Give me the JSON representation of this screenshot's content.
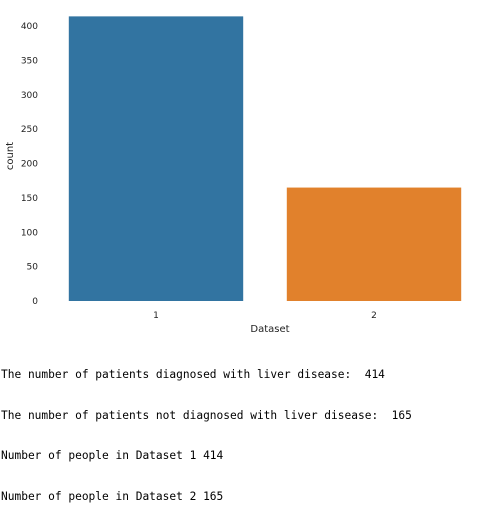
{
  "colors": {
    "series": [
      "#3274a1",
      "#e1812c"
    ],
    "text": "#222222",
    "background": "#ffffff"
  },
  "chart_data": {
    "type": "bar",
    "title": "",
    "xlabel": "Dataset",
    "ylabel": "count",
    "categories": [
      "1",
      "2"
    ],
    "values": [
      414,
      165
    ],
    "ylim": [
      0,
      416
    ],
    "yticks": [
      0,
      50,
      100,
      150,
      200,
      250,
      300,
      350,
      400
    ],
    "grid": false,
    "legend": "none"
  },
  "output": {
    "lines": [
      "The number of patients diagnosed with liver disease:  414",
      "The number of patients not diagnosed with liver disease:  165",
      "Number of people in Dataset 1 414",
      "Number of people in Dataset 2 165"
    ]
  }
}
